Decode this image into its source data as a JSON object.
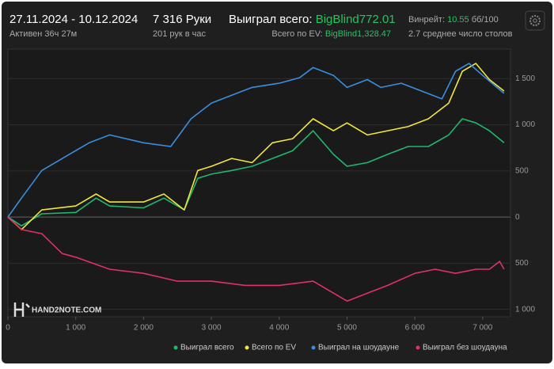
{
  "header": {
    "period": "27.11.2024 - 10.12.2024",
    "active": "Активен 36ч 27м",
    "hands": "7 316 Руки",
    "hands_per_hour": "201 рук в час",
    "won_label": "Выиграл всего:",
    "won_value": "BigBlind772.01",
    "ev_label": "Всего по EV:",
    "ev_value": "BigBlind1,328.47",
    "winrate_label": "Винрейт:",
    "winrate_value": "10.55",
    "winrate_unit": "бб/100",
    "tables": "2.7 среднее число столов"
  },
  "logo": "HAND2NOTE.COM",
  "chart_data": {
    "type": "line",
    "xlim": [
      0,
      7410
    ],
    "ylim": [
      -1080,
      1820
    ],
    "xticks": [
      0,
      {
        "value": 1000,
        "label": "1 000"
      },
      {
        "value": 2000,
        "label": "2 000"
      },
      {
        "value": 3000,
        "label": "3 000"
      },
      {
        "value": 4000,
        "label": "4 000"
      },
      {
        "value": 5000,
        "label": "5 000"
      },
      {
        "value": 6000,
        "label": "6 000"
      },
      {
        "value": 7000,
        "label": "7 000"
      }
    ],
    "yticks": [
      {
        "value": 1500,
        "label": "1 500"
      },
      {
        "value": 1000,
        "label": "1 000"
      },
      500,
      0,
      {
        "value": -500,
        "label": "500"
      },
      {
        "value": -1000,
        "label": "1 000"
      }
    ],
    "series": [
      {
        "name": "Выиграл всего",
        "color": "#1fb86e",
        "x": [
          0,
          200,
          500,
          1000,
          1300,
          1500,
          2000,
          2300,
          2600,
          2800,
          3000,
          3300,
          3600,
          3900,
          4200,
          4500,
          4800,
          5000,
          5300,
          5600,
          5900,
          6200,
          6500,
          6700,
          6900,
          7100,
          7316
        ],
        "values": [
          0,
          -95,
          35,
          50,
          205,
          120,
          100,
          205,
          77,
          420,
          465,
          505,
          550,
          635,
          720,
          935,
          680,
          550,
          590,
          680,
          765,
          765,
          890,
          1065,
          1020,
          935,
          805
        ]
      },
      {
        "name": "Всего по EV",
        "color": "#f2e53c",
        "x": [
          0,
          200,
          500,
          1000,
          1300,
          1500,
          2000,
          2300,
          2600,
          2800,
          3000,
          3300,
          3600,
          3900,
          4200,
          4500,
          4800,
          5000,
          5300,
          5600,
          5900,
          6200,
          6500,
          6700,
          6900,
          7100,
          7316
        ],
        "values": [
          0,
          -135,
          77,
          120,
          250,
          163,
          163,
          250,
          77,
          505,
          550,
          635,
          590,
          805,
          850,
          1065,
          935,
          1020,
          890,
          935,
          980,
          1065,
          1235,
          1580,
          1665,
          1490,
          1365
        ]
      },
      {
        "name": "Выиграл на шоудауне",
        "color": "#3a8ee0",
        "x": [
          0,
          200,
          500,
          1000,
          1200,
          1500,
          2000,
          2400,
          2700,
          3000,
          3300,
          3600,
          4000,
          4300,
          4500,
          4800,
          5000,
          5300,
          5500,
          5800,
          6100,
          6400,
          6600,
          6800,
          7000,
          7316
        ],
        "values": [
          0,
          205,
          505,
          720,
          805,
          890,
          805,
          765,
          1065,
          1235,
          1320,
          1405,
          1450,
          1510,
          1620,
          1535,
          1405,
          1490,
          1405,
          1450,
          1365,
          1280,
          1580,
          1665,
          1535,
          1340
        ]
      },
      {
        "name": "Выиграл без шоудауна",
        "color": "#e0306a",
        "x": [
          0,
          200,
          500,
          800,
          1000,
          1500,
          2000,
          2500,
          3000,
          3500,
          4000,
          4500,
          5000,
          5300,
          5600,
          6000,
          6300,
          6600,
          6900,
          7100,
          7250,
          7316
        ],
        "values": [
          0,
          -135,
          -180,
          -395,
          -435,
          -565,
          -610,
          -695,
          -695,
          -740,
          -740,
          -695,
          -910,
          -825,
          -740,
          -610,
          -565,
          -610,
          -565,
          -565,
          -480,
          -565
        ]
      }
    ]
  }
}
